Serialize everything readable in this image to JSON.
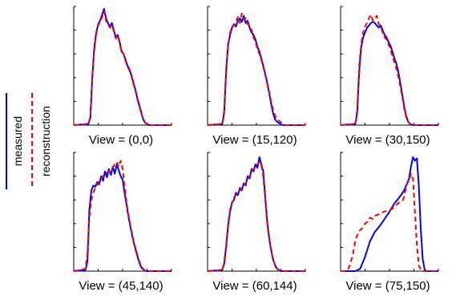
{
  "legend": {
    "measured_label": "measured",
    "reconstruction_label": "reconstruction",
    "measured_color": "#0000ff",
    "reconstruction_color": "#ff0000",
    "measured_style": "solid",
    "reconstruction_style": "dashed",
    "placement": "left, rotated vertical"
  },
  "chart_data": [
    {
      "type": "line",
      "title": "View = (0,0)",
      "xlabel": "",
      "ylabel": "",
      "xlim": [
        0,
        1
      ],
      "ylim": [
        0,
        1
      ],
      "ticks": "unlabeled",
      "series": [
        {
          "name": "measured",
          "x": [
            0.0,
            0.15,
            0.17,
            0.19,
            0.21,
            0.23,
            0.25,
            0.27,
            0.29,
            0.31,
            0.33,
            0.35,
            0.37,
            0.39,
            0.41,
            0.43,
            0.45,
            0.47,
            0.49,
            0.51,
            0.53,
            0.55,
            0.57,
            0.59,
            0.61,
            0.63,
            0.65,
            0.67,
            0.69,
            0.71,
            0.73,
            0.75,
            0.77,
            0.8,
            0.85,
            1.0
          ],
          "y": [
            0.0,
            0.01,
            0.06,
            0.4,
            0.65,
            0.78,
            0.85,
            0.88,
            0.93,
            0.98,
            0.9,
            0.86,
            0.83,
            0.86,
            0.8,
            0.74,
            0.76,
            0.7,
            0.62,
            0.6,
            0.55,
            0.5,
            0.47,
            0.42,
            0.36,
            0.3,
            0.23,
            0.17,
            0.11,
            0.05,
            0.02,
            0.01,
            0.0,
            0.0,
            0.0,
            0.0
          ]
        },
        {
          "name": "reconstruction",
          "x": [
            0.0,
            0.15,
            0.17,
            0.19,
            0.21,
            0.23,
            0.25,
            0.27,
            0.29,
            0.31,
            0.33,
            0.35,
            0.37,
            0.39,
            0.41,
            0.43,
            0.45,
            0.47,
            0.49,
            0.51,
            0.53,
            0.55,
            0.57,
            0.59,
            0.61,
            0.63,
            0.65,
            0.67,
            0.69,
            0.71,
            0.73,
            0.75,
            0.77,
            0.8,
            0.85,
            1.0
          ],
          "y": [
            0.0,
            0.01,
            0.07,
            0.42,
            0.63,
            0.77,
            0.84,
            0.87,
            0.91,
            0.96,
            0.88,
            0.85,
            0.82,
            0.84,
            0.79,
            0.73,
            0.75,
            0.69,
            0.61,
            0.6,
            0.54,
            0.49,
            0.46,
            0.41,
            0.35,
            0.29,
            0.22,
            0.16,
            0.1,
            0.05,
            0.02,
            0.01,
            0.0,
            0.0,
            0.0,
            0.0
          ]
        }
      ]
    },
    {
      "type": "line",
      "title": "View = (15,120)",
      "xlabel": "",
      "ylabel": "",
      "xlim": [
        0,
        1
      ],
      "ylim": [
        0,
        1
      ],
      "ticks": "unlabeled",
      "series": [
        {
          "name": "measured",
          "x": [
            0.0,
            0.15,
            0.17,
            0.19,
            0.21,
            0.23,
            0.25,
            0.27,
            0.29,
            0.31,
            0.33,
            0.35,
            0.37,
            0.39,
            0.41,
            0.43,
            0.45,
            0.47,
            0.49,
            0.51,
            0.53,
            0.55,
            0.57,
            0.59,
            0.61,
            0.63,
            0.65,
            0.67,
            0.69,
            0.71,
            0.74,
            0.77,
            0.8,
            0.85,
            1.0
          ],
          "y": [
            0.0,
            0.01,
            0.1,
            0.45,
            0.68,
            0.76,
            0.82,
            0.85,
            0.83,
            0.88,
            0.9,
            0.87,
            0.92,
            0.86,
            0.88,
            0.82,
            0.78,
            0.76,
            0.72,
            0.66,
            0.62,
            0.56,
            0.5,
            0.43,
            0.36,
            0.27,
            0.18,
            0.1,
            0.05,
            0.03,
            0.01,
            0.0,
            0.0,
            0.0,
            0.0
          ]
        },
        {
          "name": "reconstruction",
          "x": [
            0.0,
            0.15,
            0.17,
            0.19,
            0.21,
            0.23,
            0.25,
            0.27,
            0.29,
            0.31,
            0.33,
            0.35,
            0.37,
            0.39,
            0.41,
            0.43,
            0.45,
            0.47,
            0.49,
            0.51,
            0.53,
            0.55,
            0.57,
            0.59,
            0.61,
            0.63,
            0.65,
            0.67,
            0.69,
            0.71,
            0.74,
            0.77,
            0.8,
            0.85,
            1.0
          ],
          "y": [
            0.0,
            0.01,
            0.12,
            0.48,
            0.66,
            0.78,
            0.83,
            0.84,
            0.87,
            0.91,
            0.86,
            0.94,
            0.89,
            0.9,
            0.85,
            0.84,
            0.8,
            0.74,
            0.7,
            0.64,
            0.6,
            0.55,
            0.49,
            0.42,
            0.35,
            0.28,
            0.2,
            0.13,
            0.08,
            0.05,
            0.03,
            0.01,
            0.0,
            0.0,
            0.0
          ]
        }
      ]
    },
    {
      "type": "line",
      "title": "View = (30,150)",
      "xlabel": "",
      "ylabel": "",
      "xlim": [
        0,
        1
      ],
      "ylim": [
        0,
        1
      ],
      "ticks": "unlabeled",
      "series": [
        {
          "name": "measured",
          "x": [
            0.0,
            0.15,
            0.17,
            0.19,
            0.21,
            0.23,
            0.25,
            0.27,
            0.29,
            0.31,
            0.33,
            0.35,
            0.37,
            0.39,
            0.41,
            0.43,
            0.45,
            0.47,
            0.49,
            0.51,
            0.53,
            0.55,
            0.57,
            0.59,
            0.61,
            0.63,
            0.65,
            0.67,
            0.69,
            0.71,
            0.74,
            0.77,
            0.8,
            0.85,
            1.0
          ],
          "y": [
            0.0,
            0.01,
            0.1,
            0.45,
            0.65,
            0.74,
            0.78,
            0.82,
            0.84,
            0.86,
            0.87,
            0.86,
            0.84,
            0.82,
            0.84,
            0.8,
            0.76,
            0.74,
            0.7,
            0.67,
            0.62,
            0.56,
            0.52,
            0.45,
            0.36,
            0.26,
            0.16,
            0.08,
            0.03,
            0.01,
            0.0,
            0.0,
            0.0,
            0.0,
            0.0
          ]
        },
        {
          "name": "reconstruction",
          "x": [
            0.0,
            0.15,
            0.17,
            0.19,
            0.21,
            0.23,
            0.25,
            0.27,
            0.29,
            0.31,
            0.33,
            0.35,
            0.37,
            0.39,
            0.41,
            0.43,
            0.45,
            0.47,
            0.49,
            0.51,
            0.53,
            0.55,
            0.57,
            0.59,
            0.61,
            0.63,
            0.65,
            0.67,
            0.69,
            0.71,
            0.74,
            0.77,
            0.8,
            0.85,
            1.0
          ],
          "y": [
            0.0,
            0.01,
            0.12,
            0.5,
            0.68,
            0.78,
            0.83,
            0.86,
            0.9,
            0.93,
            0.88,
            0.9,
            0.92,
            0.85,
            0.83,
            0.78,
            0.74,
            0.72,
            0.68,
            0.64,
            0.58,
            0.53,
            0.48,
            0.41,
            0.33,
            0.24,
            0.14,
            0.07,
            0.03,
            0.01,
            0.0,
            0.0,
            0.0,
            0.0,
            0.0
          ]
        }
      ]
    },
    {
      "type": "line",
      "title": "View = (45,140)",
      "xlabel": "",
      "ylabel": "",
      "xlim": [
        0,
        1
      ],
      "ylim": [
        0,
        1
      ],
      "ticks": "unlabeled",
      "series": [
        {
          "name": "measured",
          "x": [
            0.0,
            0.12,
            0.14,
            0.16,
            0.18,
            0.2,
            0.22,
            0.24,
            0.26,
            0.28,
            0.3,
            0.32,
            0.34,
            0.36,
            0.38,
            0.4,
            0.42,
            0.44,
            0.46,
            0.48,
            0.5,
            0.52,
            0.54,
            0.56,
            0.58,
            0.6,
            0.62,
            0.64,
            0.66,
            0.68,
            0.7,
            0.72,
            0.74,
            0.76,
            0.78,
            0.8,
            1.0
          ],
          "y": [
            0.0,
            0.01,
            0.08,
            0.52,
            0.68,
            0.72,
            0.71,
            0.75,
            0.73,
            0.8,
            0.76,
            0.84,
            0.79,
            0.86,
            0.81,
            0.88,
            0.82,
            0.9,
            0.85,
            0.8,
            0.77,
            0.66,
            0.56,
            0.46,
            0.37,
            0.29,
            0.22,
            0.16,
            0.1,
            0.05,
            0.02,
            0.01,
            0.0,
            0.0,
            0.0,
            0.0,
            0.0
          ]
        },
        {
          "name": "reconstruction",
          "x": [
            0.0,
            0.12,
            0.14,
            0.16,
            0.18,
            0.2,
            0.22,
            0.24,
            0.26,
            0.28,
            0.3,
            0.32,
            0.34,
            0.36,
            0.38,
            0.4,
            0.42,
            0.44,
            0.46,
            0.48,
            0.5,
            0.52,
            0.54,
            0.56,
            0.58,
            0.6,
            0.62,
            0.64,
            0.66,
            0.68,
            0.7,
            0.72,
            0.74,
            0.76,
            0.78,
            0.8,
            1.0
          ],
          "y": [
            0.0,
            0.02,
            0.15,
            0.45,
            0.6,
            0.66,
            0.7,
            0.73,
            0.76,
            0.78,
            0.8,
            0.82,
            0.83,
            0.84,
            0.86,
            0.87,
            0.9,
            0.92,
            0.88,
            0.93,
            0.86,
            0.72,
            0.58,
            0.47,
            0.38,
            0.3,
            0.23,
            0.17,
            0.11,
            0.06,
            0.03,
            0.01,
            0.0,
            0.0,
            0.0,
            0.0,
            0.0
          ]
        }
      ]
    },
    {
      "type": "line",
      "title": "View = (60,144)",
      "xlabel": "",
      "ylabel": "",
      "xlim": [
        0,
        1
      ],
      "ylim": [
        0,
        1
      ],
      "ticks": "unlabeled",
      "series": [
        {
          "name": "measured",
          "x": [
            0.0,
            0.15,
            0.17,
            0.19,
            0.21,
            0.23,
            0.25,
            0.27,
            0.29,
            0.31,
            0.33,
            0.35,
            0.37,
            0.39,
            0.41,
            0.43,
            0.45,
            0.47,
            0.49,
            0.51,
            0.53,
            0.55,
            0.57,
            0.59,
            0.61,
            0.63,
            0.65,
            0.67,
            0.69,
            0.71,
            0.73,
            0.75,
            0.77,
            0.8,
            0.85,
            1.0
          ],
          "y": [
            0.0,
            0.01,
            0.06,
            0.2,
            0.38,
            0.5,
            0.58,
            0.6,
            0.66,
            0.64,
            0.7,
            0.68,
            0.74,
            0.72,
            0.8,
            0.78,
            0.86,
            0.84,
            0.9,
            0.87,
            0.96,
            0.9,
            0.84,
            0.62,
            0.42,
            0.28,
            0.18,
            0.1,
            0.05,
            0.02,
            0.01,
            0.0,
            0.0,
            0.0,
            0.0,
            0.0
          ]
        },
        {
          "name": "reconstruction",
          "x": [
            0.0,
            0.15,
            0.17,
            0.19,
            0.21,
            0.23,
            0.25,
            0.27,
            0.29,
            0.31,
            0.33,
            0.35,
            0.37,
            0.39,
            0.41,
            0.43,
            0.45,
            0.47,
            0.49,
            0.51,
            0.53,
            0.55,
            0.57,
            0.59,
            0.61,
            0.63,
            0.65,
            0.67,
            0.69,
            0.71,
            0.73,
            0.75,
            0.77,
            0.8,
            0.85,
            1.0
          ],
          "y": [
            0.0,
            0.01,
            0.07,
            0.22,
            0.4,
            0.52,
            0.57,
            0.62,
            0.64,
            0.66,
            0.68,
            0.7,
            0.72,
            0.74,
            0.78,
            0.8,
            0.84,
            0.86,
            0.88,
            0.9,
            0.92,
            0.89,
            0.8,
            0.6,
            0.4,
            0.27,
            0.17,
            0.1,
            0.05,
            0.02,
            0.01,
            0.0,
            0.0,
            0.0,
            0.0,
            0.0
          ]
        }
      ]
    },
    {
      "type": "line",
      "title": "View = (75,150)",
      "xlabel": "",
      "ylabel": "",
      "xlim": [
        0,
        1
      ],
      "ylim": [
        0,
        1
      ],
      "ticks": "unlabeled",
      "series": [
        {
          "name": "measured",
          "x": [
            0.0,
            0.1,
            0.15,
            0.2,
            0.25,
            0.3,
            0.35,
            0.4,
            0.45,
            0.5,
            0.55,
            0.6,
            0.65,
            0.7,
            0.72,
            0.74,
            0.76,
            0.78,
            0.8,
            0.82,
            0.84,
            0.86,
            0.88,
            1.0
          ],
          "y": [
            0.0,
            0.0,
            0.0,
            0.02,
            0.12,
            0.25,
            0.33,
            0.38,
            0.44,
            0.5,
            0.57,
            0.62,
            0.68,
            0.78,
            0.88,
            0.96,
            0.93,
            0.95,
            0.72,
            0.36,
            0.1,
            0.01,
            0.0,
            0.0
          ]
        },
        {
          "name": "reconstruction",
          "x": [
            0.0,
            0.05,
            0.08,
            0.12,
            0.15,
            0.18,
            0.22,
            0.25,
            0.28,
            0.3,
            0.33,
            0.36,
            0.4,
            0.44,
            0.48,
            0.52,
            0.56,
            0.6,
            0.64,
            0.68,
            0.7,
            0.72,
            0.74,
            0.76,
            0.78,
            0.8,
            0.82,
            0.84,
            1.0
          ],
          "y": [
            0.0,
            0.0,
            0.02,
            0.12,
            0.25,
            0.33,
            0.36,
            0.4,
            0.42,
            0.45,
            0.44,
            0.47,
            0.48,
            0.5,
            0.51,
            0.52,
            0.55,
            0.58,
            0.6,
            0.74,
            0.76,
            0.82,
            0.78,
            0.5,
            0.22,
            0.05,
            0.01,
            0.0,
            0.0
          ]
        }
      ]
    }
  ]
}
